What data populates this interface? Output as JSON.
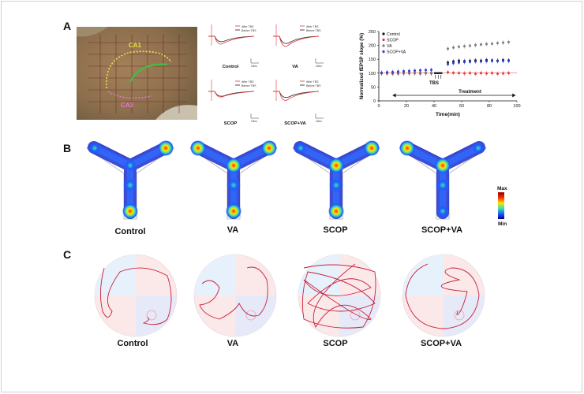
{
  "panels": {
    "a": "A",
    "b": "B",
    "c": "C"
  },
  "hippocampus": {
    "ca1": "CA1",
    "ca3": "CA3"
  },
  "traces": {
    "legend_after": "After TBS",
    "legend_before": "Before TBS",
    "scale": "10ms",
    "labels": [
      "Control",
      "VA",
      "SCOP",
      "SCOP+VA"
    ],
    "colors": {
      "after": "#e8343a",
      "before": "#222222"
    }
  },
  "chart_data": {
    "type": "scatter",
    "xlabel": "Time(min)",
    "ylabel": "Normalized fEPSP slope (%)",
    "xlim": [
      0,
      100
    ],
    "ylim": [
      0,
      250
    ],
    "xticks": [
      0,
      20,
      40,
      60,
      80,
      100
    ],
    "yticks": [
      0,
      50,
      100,
      150,
      200,
      250
    ],
    "annotations": {
      "tbs": "TBS",
      "treatment": "Treatment"
    },
    "legend": "top-left",
    "x": [
      2,
      6,
      10,
      14,
      18,
      22,
      26,
      30,
      34,
      38,
      50,
      54,
      58,
      62,
      66,
      70,
      74,
      78,
      82,
      86,
      90,
      94
    ],
    "series": [
      {
        "name": "Control",
        "color": "#111111",
        "values": [
          100,
          100,
          101,
          99,
          100,
          101,
          100,
          99,
          100,
          100,
          138,
          142,
          145,
          143,
          144,
          146,
          145,
          147,
          146,
          145,
          147,
          146
        ]
      },
      {
        "name": "SCOP",
        "color": "#e8343a",
        "values": [
          100,
          99,
          98,
          101,
          100,
          99,
          100,
          101,
          100,
          99,
          103,
          101,
          100,
          99,
          100,
          98,
          100,
          99,
          100,
          98,
          99,
          100
        ]
      },
      {
        "name": "VA",
        "color": "#7a7a7a",
        "values": [
          100,
          101,
          100,
          100,
          99,
          101,
          100,
          100,
          101,
          100,
          188,
          192,
          195,
          197,
          199,
          201,
          203,
          205,
          206,
          208,
          210,
          212
        ]
      },
      {
        "name": "SCOP+VA",
        "color": "#2a3fd6",
        "values": [
          101,
          103,
          104,
          106,
          107,
          108,
          109,
          110,
          111,
          112,
          132,
          136,
          138,
          140,
          141,
          142,
          142,
          143,
          144,
          143,
          144,
          144
        ]
      }
    ]
  },
  "ymaze": {
    "labels": [
      "Control",
      "VA",
      "SCOP",
      "SCOP+VA"
    ],
    "colorbar_max": "Max",
    "colorbar_min": "Min"
  },
  "watermaze": {
    "labels": [
      "Control",
      "VA",
      "SCOP",
      "SCOP+VA"
    ]
  }
}
